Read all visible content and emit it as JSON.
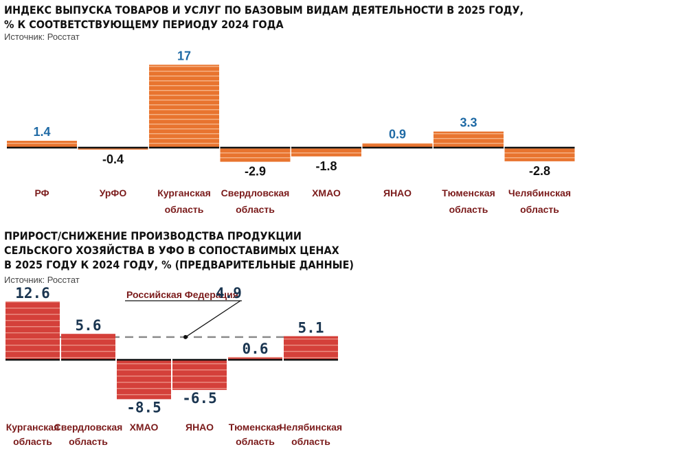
{
  "colors": {
    "bar1": "#e8742f",
    "bar1_stripe": "#f6b488",
    "bar2": "#d4403a",
    "bar2_stripe": "#eb8f84",
    "pos_label1": "#1f6aa5",
    "pos_label2": "#1a3550",
    "neg_label": "#111111",
    "category": "#7a1a1a",
    "baseline": "#111111",
    "dash": "#8a8a8a"
  },
  "chart_data": [
    {
      "type": "bar",
      "title_lines": [
        "ИНДЕКС ВЫПУСКА ТОВАРОВ И УСЛУГ ПО БАЗОВЫМ ВИДАМ ДЕЯТЕЛЬНОСТИ В 2025 ГОДУ,",
        "% К СООТВЕТСТВУЮЩЕМУ ПЕРИОДУ 2024 ГОДА"
      ],
      "source": "Источник: Росстат",
      "categories": [
        [
          "РФ"
        ],
        [
          "УрФО"
        ],
        [
          "Курганская",
          "область"
        ],
        [
          "Свердловская",
          "область"
        ],
        [
          "ХМАО"
        ],
        [
          "ЯНАО"
        ],
        [
          "Тюменская",
          "область"
        ],
        [
          "Челябинская",
          "область"
        ]
      ],
      "values": [
        1.4,
        -0.4,
        17,
        -2.9,
        -1.8,
        0.9,
        3.3,
        -2.8
      ],
      "value_labels": [
        "1.4",
        "-0.4",
        "17",
        "-2.9",
        "-1.8",
        "0.9",
        "3.3",
        "-2.8"
      ],
      "legend": "none",
      "grid": false
    },
    {
      "type": "bar",
      "title_lines": [
        "ПРИРОСТ/СНИЖЕНИЕ ПРОИЗВОДСТВА ПРОДУКЦИИ",
        "СЕЛЬСКОГО ХОЗЯЙСТВА В УФО В СОПОСТАВИМЫХ ЦЕНАХ",
        "В 2025 ГОДУ К 2024 ГОДУ, % (ПРЕДВАРИТЕЛЬНЫЕ ДАННЫЕ)"
      ],
      "source": "Источник: Росстат",
      "categories": [
        [
          "Курганская",
          "область"
        ],
        [
          "Свердловская",
          "область"
        ],
        [
          "ХМАО"
        ],
        [
          "ЯНАО"
        ],
        [
          "Тюменская",
          "область"
        ],
        [
          "Челябинская",
          "область"
        ]
      ],
      "values": [
        12.6,
        5.6,
        -8.5,
        -6.5,
        0.6,
        5.1
      ],
      "value_labels": [
        "12.6",
        "5.6",
        "-8.5",
        "-6.5",
        "0.6",
        "5.1"
      ],
      "reference_line": {
        "label": "Российская Федерация",
        "value": 4.9,
        "value_label": "4.9"
      },
      "legend": "none",
      "grid": false
    }
  ]
}
